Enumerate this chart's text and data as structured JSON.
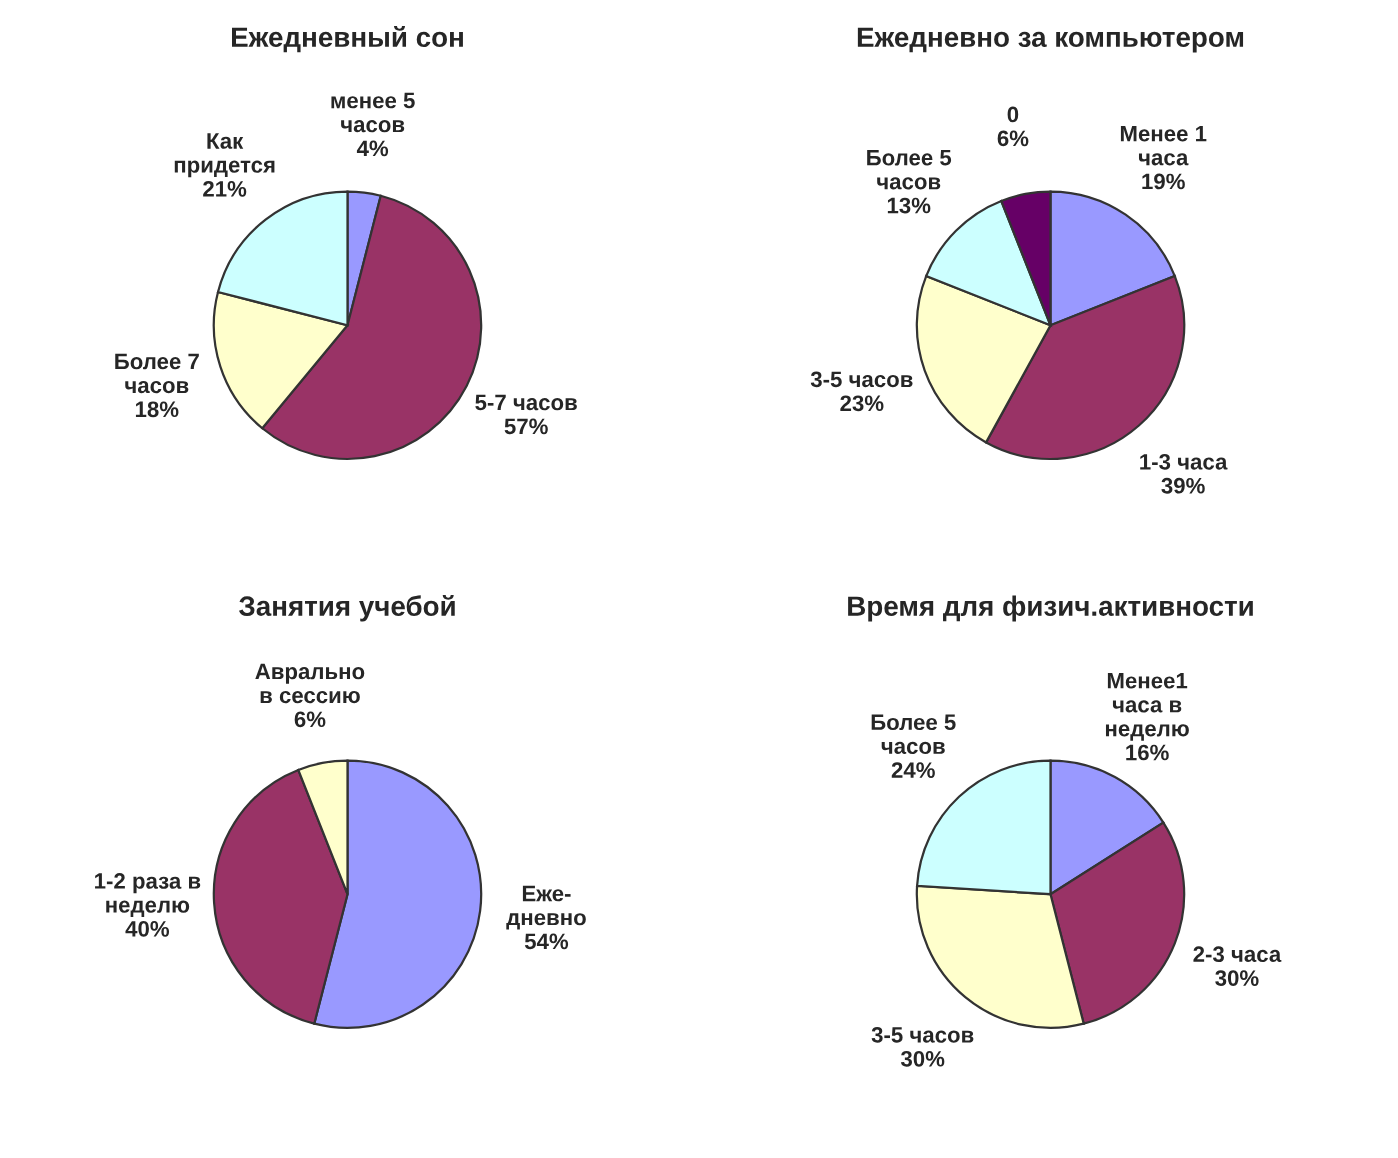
{
  "chart_data": [
    {
      "type": "pie",
      "title": "Ежедневный сон",
      "categories": [
        "менее 5\nчасов",
        "5-7 часов",
        "Более 7\nчасов",
        "Как\nпридется"
      ],
      "values": [
        4,
        57,
        18,
        21
      ],
      "colors": [
        "#9999ff",
        "#993366",
        "#ffffcc",
        "#ccffff"
      ],
      "value_labels": [
        "4%",
        "57%",
        "18%",
        "21%"
      ]
    },
    {
      "type": "pie",
      "title": "Ежедневно за компьютером",
      "categories": [
        "Менее 1\nчаса",
        "1-3 часа",
        "3-5 часов",
        "Более 5\nчасов",
        "0"
      ],
      "values": [
        19,
        39,
        23,
        13,
        6
      ],
      "colors": [
        "#9999ff",
        "#993366",
        "#ffffcc",
        "#ccffff",
        "#660066"
      ],
      "value_labels": [
        "19%",
        "39%",
        "23%",
        "13%",
        "6%"
      ]
    },
    {
      "type": "pie",
      "title": "Занятия учебой",
      "categories": [
        "Еже-\nдневно",
        "1-2 раза в\nнеделю",
        "Аврально\nв сессию"
      ],
      "values": [
        54,
        40,
        6
      ],
      "colors": [
        "#9999ff",
        "#993366",
        "#ffffcc"
      ],
      "value_labels": [
        "54%",
        "40%",
        "6%"
      ]
    },
    {
      "type": "pie",
      "title": "Время для физич.активности",
      "categories": [
        "Менее1\nчаса в\nнеделю",
        "2-3 часа",
        "3-5 часов",
        "Более 5\nчасов"
      ],
      "values": [
        16,
        30,
        30,
        24
      ],
      "colors": [
        "#9999ff",
        "#993366",
        "#ffffcc",
        "#ccffff"
      ],
      "value_labels": [
        "16%",
        "30%",
        "30%",
        "24%"
      ]
    }
  ]
}
